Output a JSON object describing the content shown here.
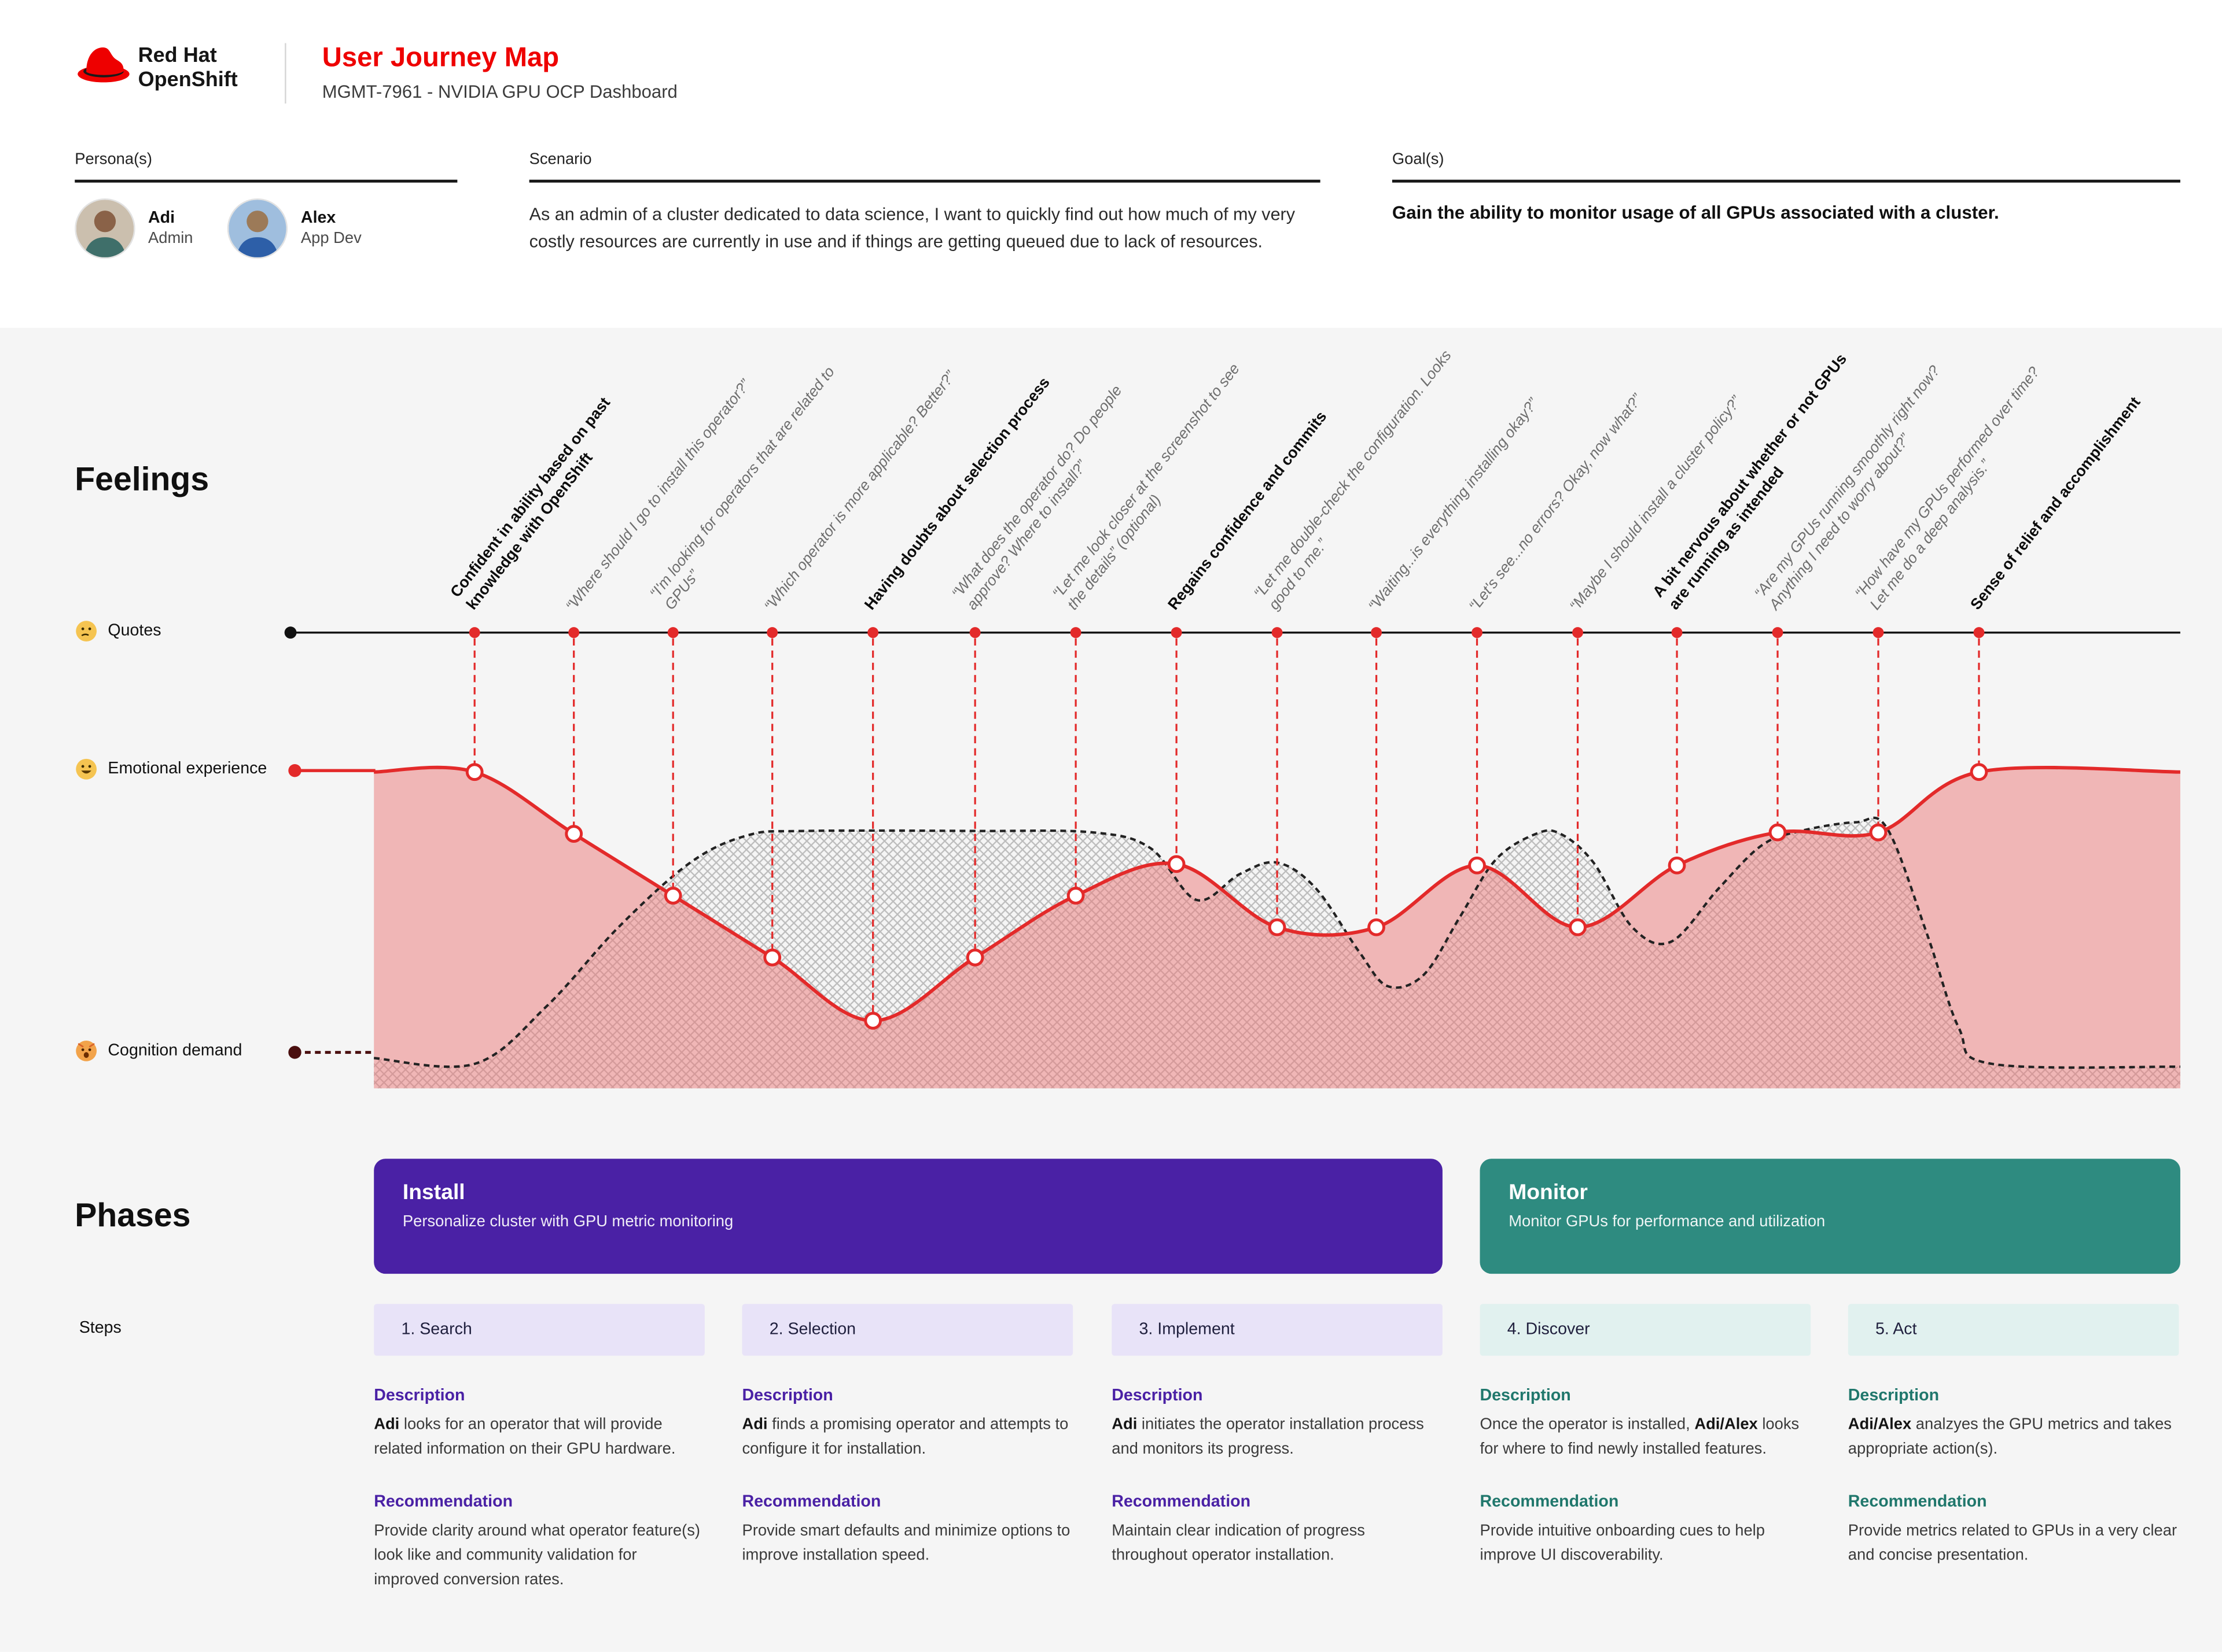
{
  "colors": {
    "accent_red": "#ee0000",
    "curve_red": "#e32a2a",
    "cognition_dark": "#4a0f0f",
    "purple": "#4a21a5",
    "purple_light": "#e8e3f8",
    "teal": "#2e8b80",
    "teal_light": "#e1f1ef",
    "teal_text": "#20776c",
    "panel_gray": "#f5f5f5"
  },
  "header": {
    "brand_line1": "Red Hat",
    "brand_line2": "OpenShift",
    "title": "User Journey Map",
    "subtitle": "MGMT-7961 - NVIDIA GPU OCP Dashboard"
  },
  "info": {
    "personas_label": "Persona(s)",
    "personas": [
      {
        "name": "Adi",
        "role": "Admin",
        "avatar_bg": "#cbbfae",
        "skin": "#8a6248",
        "shirt": "#3f6f6a"
      },
      {
        "name": "Alex",
        "role": "App Dev",
        "avatar_bg": "#9fbede",
        "skin": "#9c7a58",
        "shirt": "#2d5fa8"
      }
    ],
    "scenario_label": "Scenario",
    "scenario_text": "As an admin of a cluster dedicated to data science, I want to quickly find out how much of my very costly resources are currently in use and if things are getting queued due to lack of resources.",
    "goals_label": "Goal(s)",
    "goals_text": "Gain the ability to monitor usage of all GPUs associated with a cluster."
  },
  "feelings": {
    "heading": "Feelings",
    "rows": [
      {
        "icon": "thinking-face",
        "label": "Quotes"
      },
      {
        "icon": "grinning-face",
        "label": "Emotional experience"
      },
      {
        "icon": "exploding-head",
        "label": "Cognition demand"
      }
    ]
  },
  "chart_data": {
    "type": "line",
    "title": "Feelings",
    "legend": [
      "Quotes",
      "Emotional experience",
      "Cognition demand"
    ],
    "note": "Qualitative journey curves; coordinates are canvas pixels, lower y = more positive emotion / higher cognition demand.",
    "baselines": {
      "quotes_line_y": 440,
      "emotional_label_y": 536,
      "cognition_label_y": 732,
      "area_bottom_y": 757,
      "x_range": [
        260,
        1516
      ]
    },
    "quote_markers_x": [
      330,
      399,
      468,
      537,
      607,
      678,
      748,
      818,
      888,
      957,
      1027,
      1097,
      1166,
      1236,
      1306,
      1376
    ],
    "quotes": [
      {
        "text": "Confident in ability based on past knowledge with OpenShift",
        "emphasis": true
      },
      {
        "text": "“Where should I go to install this operator?”",
        "emphasis": false
      },
      {
        "text": "“I'm looking for operators that are related to GPUs”",
        "emphasis": false
      },
      {
        "text": "“Which operator is more applicable? Better?”",
        "emphasis": false
      },
      {
        "text": "Having doubts about selection process",
        "emphasis": true
      },
      {
        "text": "“What does the operator do? Do people approve? Where to install?”",
        "emphasis": false
      },
      {
        "text": "“Let me look closer at the screenshot to see the details” (optional)",
        "emphasis": false
      },
      {
        "text": "Regains confidence and commits",
        "emphasis": true
      },
      {
        "text": "“Let me double-check the configuration. Looks good to me.”",
        "emphasis": false
      },
      {
        "text": "“Waiting...is everything installing okay?”",
        "emphasis": false
      },
      {
        "text": "“Let's see...no errors? Okay, now what?”",
        "emphasis": false
      },
      {
        "text": "“Maybe I should install a cluster policy?”",
        "emphasis": false
      },
      {
        "text": "A bit nervous about whether or not GPUs are running as intended",
        "emphasis": true
      },
      {
        "text": "“Are my GPUs running smoothly right now? Anything I need to worry about?”",
        "emphasis": false
      },
      {
        "text": "“How have my GPUs performed over time? Let me do a deep analysis.”",
        "emphasis": false
      },
      {
        "text": "Sense of relief and accomplishment",
        "emphasis": true
      }
    ],
    "series": [
      {
        "name": "Emotional experience",
        "style": "solid",
        "color": "#e32a2a",
        "points": [
          [
            260,
            537
          ],
          [
            330,
            537
          ],
          [
            399,
            580
          ],
          [
            468,
            623
          ],
          [
            537,
            666
          ],
          [
            607,
            710
          ],
          [
            678,
            666
          ],
          [
            748,
            623
          ],
          [
            818,
            601
          ],
          [
            888,
            645
          ],
          [
            957,
            645
          ],
          [
            1027,
            602
          ],
          [
            1097,
            645
          ],
          [
            1166,
            602
          ],
          [
            1236,
            579
          ],
          [
            1306,
            579
          ],
          [
            1376,
            537
          ],
          [
            1516,
            537
          ]
        ]
      },
      {
        "name": "Cognition demand",
        "style": "dashed",
        "fill": "crosshatch",
        "color": "#222222",
        "points": [
          [
            260,
            736
          ],
          [
            330,
            740
          ],
          [
            380,
            700
          ],
          [
            430,
            645
          ],
          [
            480,
            600
          ],
          [
            520,
            581
          ],
          [
            560,
            578
          ],
          [
            680,
            578
          ],
          [
            760,
            579
          ],
          [
            800,
            590
          ],
          [
            832,
            626
          ],
          [
            862,
            608
          ],
          [
            888,
            600
          ],
          [
            915,
            618
          ],
          [
            945,
            662
          ],
          [
            965,
            686
          ],
          [
            990,
            678
          ],
          [
            1015,
            638
          ],
          [
            1040,
            598
          ],
          [
            1068,
            580
          ],
          [
            1085,
            580
          ],
          [
            1108,
            600
          ],
          [
            1135,
            645
          ],
          [
            1162,
            655
          ],
          [
            1195,
            618
          ],
          [
            1225,
            588
          ],
          [
            1252,
            578
          ],
          [
            1290,
            572
          ],
          [
            1312,
            576
          ],
          [
            1340,
            650
          ],
          [
            1362,
            715
          ],
          [
            1385,
            740
          ],
          [
            1516,
            742
          ]
        ]
      }
    ]
  },
  "phases": {
    "heading": "Phases",
    "items": [
      {
        "title": "Install",
        "subtitle": "Personalize cluster with GPU metric monitoring",
        "color": "#4a21a5"
      },
      {
        "title": "Monitor",
        "subtitle": "Monitor GPUs for performance and utilization",
        "color": "#2e8b80"
      }
    ]
  },
  "steps": {
    "label": "Steps",
    "items": [
      {
        "label": "1. Search",
        "theme": "purple",
        "description_heading": "Description",
        "description": [
          {
            "t": "Adi",
            "b": true
          },
          {
            "t": " looks for an operator that will provide related information on their GPU hardware."
          }
        ],
        "recommendation_heading": "Recommendation",
        "recommendation": "Provide clarity around what operator feature(s) look like and community validation for improved conversion rates."
      },
      {
        "label": "2. Selection",
        "theme": "purple",
        "description_heading": "Description",
        "description": [
          {
            "t": "Adi",
            "b": true
          },
          {
            "t": " finds a promising operator and attempts to configure it for installation."
          }
        ],
        "recommendation_heading": "Recommendation",
        "recommendation": "Provide smart defaults and minimize options to improve installation speed."
      },
      {
        "label": "3. Implement",
        "theme": "purple",
        "description_heading": "Description",
        "description": [
          {
            "t": "Adi",
            "b": true
          },
          {
            "t": " initiates the operator installation process and monitors its progress."
          }
        ],
        "recommendation_heading": "Recommendation",
        "recommendation": "Maintain clear indication of progress throughout operator installation."
      },
      {
        "label": "4. Discover",
        "theme": "teal",
        "description_heading": "Description",
        "description": [
          {
            "t": "Once the operator is installed, "
          },
          {
            "t": "Adi/Alex",
            "b": true
          },
          {
            "t": " looks for where to find newly installed features."
          }
        ],
        "recommendation_heading": "Recommendation",
        "recommendation": "Provide intuitive onboarding cues to help improve UI discoverability."
      },
      {
        "label": "5. Act",
        "theme": "teal",
        "description_heading": "Description",
        "description": [
          {
            "t": "Adi/Alex",
            "b": true
          },
          {
            "t": " analzyes the GPU metrics and takes appropriate action(s)."
          }
        ],
        "recommendation_heading": "Recommendation",
        "recommendation": "Provide metrics related to GPUs in a very clear and concise presentation."
      }
    ]
  }
}
